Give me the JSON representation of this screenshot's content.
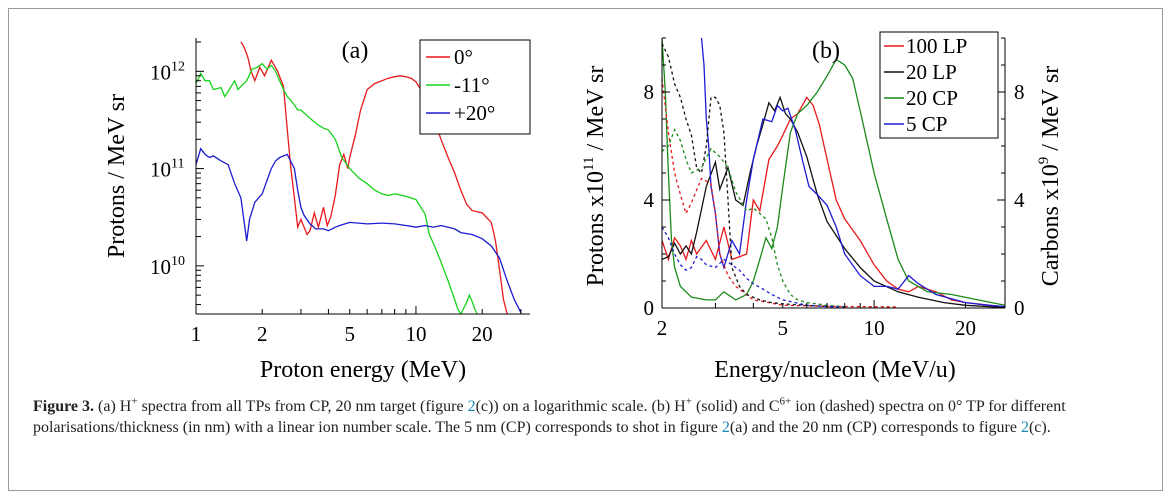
{
  "chart_data": [
    {
      "type": "line",
      "panel_label": "(a)",
      "xscale": "log",
      "yscale": "log",
      "xlabel": "Proton energy (MeV)",
      "ylabel": "Protons / MeV sr",
      "xlim": [
        1,
        33
      ],
      "ylim": [
        3200000000.0,
        2200000000000.0
      ],
      "xticks": [
        1,
        2,
        3,
        4,
        5,
        6,
        7,
        8,
        9,
        10,
        20,
        30
      ],
      "xtick_labels": [
        {
          "v": 1,
          "t": "1"
        },
        {
          "v": 2,
          "t": "2"
        },
        {
          "v": 5,
          "t": "5"
        },
        {
          "v": 10,
          "t": "10"
        },
        {
          "v": 20,
          "t": "20"
        }
      ],
      "yticks_major": [
        {
          "v": 10000000000.0,
          "base": "10",
          "exp": "10"
        },
        {
          "v": 100000000000.0,
          "base": "10",
          "exp": "11"
        },
        {
          "v": 1000000000000.0,
          "base": "10",
          "exp": "12"
        }
      ],
      "legend_placement": "top-right",
      "series": [
        {
          "name": "0°",
          "color": "#e8191b",
          "x": [
            1.6,
            1.65,
            1.72,
            1.78,
            1.85,
            1.95,
            2.05,
            2.2,
            2.35,
            2.5,
            2.6,
            2.7,
            2.8,
            2.9,
            3.0,
            3.1,
            3.2,
            3.3,
            3.45,
            3.6,
            3.8,
            3.95,
            4.1,
            4.3,
            4.5,
            4.7,
            4.9,
            5.0,
            5.3,
            5.6,
            6.0,
            6.5,
            7.0,
            7.5,
            8.0,
            8.5,
            9.0,
            9.5,
            10.0,
            11.0,
            12.0,
            13.0,
            14.0,
            15.0,
            16.0,
            17.0,
            18.0,
            20.0,
            22.0,
            23.0,
            24.0,
            25.0,
            26.0
          ],
          "y": [
            2000000000000.0,
            1800000000000.0,
            1400000000000.0,
            1000000000000.0,
            800000000000.0,
            1100000000000.0,
            900000000000.0,
            1300000000000.0,
            1000000000000.0,
            700000000000.0,
            250000000000.0,
            100000000000.0,
            50000000000.0,
            25000000000.0,
            30000000000.0,
            25000000000.0,
            21000000000.0,
            23000000000.0,
            35000000000.0,
            25000000000.0,
            40000000000.0,
            26000000000.0,
            32000000000.0,
            53000000000.0,
            110000000000.0,
            140000000000.0,
            100000000000.0,
            130000000000.0,
            220000000000.0,
            400000000000.0,
            650000000000.0,
            750000000000.0,
            800000000000.0,
            850000000000.0,
            880000000000.0,
            900000000000.0,
            880000000000.0,
            850000000000.0,
            780000000000.0,
            550000000000.0,
            330000000000.0,
            200000000000.0,
            130000000000.0,
            90000000000.0,
            60000000000.0,
            43000000000.0,
            37000000000.0,
            35000000000.0,
            28000000000.0,
            18000000000.0,
            9000000000.0,
            4500000000.0,
            3200000000.0
          ]
        },
        {
          "name": "-11°",
          "color": "#17d31b",
          "x": [
            1.0,
            1.05,
            1.1,
            1.15,
            1.2,
            1.3,
            1.35,
            1.4,
            1.5,
            1.55,
            1.6,
            1.7,
            1.8,
            1.9,
            2.0,
            2.1,
            2.2,
            2.3,
            2.4,
            2.5,
            2.6,
            2.7,
            2.8,
            2.9,
            3.0,
            3.2,
            3.4,
            3.6,
            3.8,
            4.0,
            4.3,
            4.6,
            5.0,
            5.5,
            6.0,
            6.5,
            7.0,
            7.5,
            8.0,
            9.0,
            10.0,
            11.0,
            11.5,
            12.0,
            13.0,
            14.0,
            15.0,
            15.5,
            16.0,
            17.0,
            17.5,
            18.0,
            18.5,
            19.0
          ],
          "y": [
            750000000000.0,
            950000000000.0,
            800000000000.0,
            800000000000.0,
            650000000000.0,
            680000000000.0,
            550000000000.0,
            620000000000.0,
            800000000000.0,
            650000000000.0,
            700000000000.0,
            800000000000.0,
            1050000000000.0,
            1100000000000.0,
            1200000000000.0,
            1050000000000.0,
            1150000000000.0,
            1000000000000.0,
            800000000000.0,
            650000000000.0,
            550000000000.0,
            500000000000.0,
            450000000000.0,
            400000000000.0,
            400000000000.0,
            350000000000.0,
            310000000000.0,
            280000000000.0,
            260000000000.0,
            250000000000.0,
            200000000000.0,
            130000000000.0,
            100000000000.0,
            80000000000.0,
            70000000000.0,
            60000000000.0,
            55000000000.0,
            53000000000.0,
            55000000000.0,
            52000000000.0,
            48000000000.0,
            34000000000.0,
            21000000000.0,
            17000000000.0,
            11000000000.0,
            7000000000.0,
            4500000000.0,
            3600000000.0,
            3200000000.0,
            4200000000.0,
            5000000000.0,
            4300000000.0,
            3600000000.0,
            3200000000.0
          ]
        },
        {
          "name": "+20°",
          "color": "#1c1cd1",
          "x": [
            1.0,
            1.05,
            1.1,
            1.15,
            1.2,
            1.3,
            1.4,
            1.5,
            1.6,
            1.65,
            1.7,
            1.75,
            1.85,
            2.0,
            2.1,
            2.2,
            2.3,
            2.4,
            2.6,
            2.8,
            2.9,
            3.0,
            3.1,
            3.3,
            3.5,
            3.8,
            4.0,
            4.3,
            4.5,
            5.0,
            6.0,
            7.0,
            8.0,
            9.0,
            10.0,
            11.0,
            12.0,
            13.0,
            14.0,
            15.0,
            16.0,
            18.0,
            20.0,
            22.0,
            24.0,
            26.0,
            28.0,
            30.0
          ],
          "y": [
            110000000000.0,
            160000000000.0,
            140000000000.0,
            130000000000.0,
            135000000000.0,
            120000000000.0,
            110000000000.0,
            70000000000.0,
            50000000000.0,
            30000000000.0,
            18000000000.0,
            30000000000.0,
            45000000000.0,
            55000000000.0,
            75000000000.0,
            100000000000.0,
            120000000000.0,
            130000000000.0,
            140000000000.0,
            100000000000.0,
            60000000000.0,
            40000000000.0,
            33000000000.0,
            27000000000.0,
            24000000000.0,
            24000000000.0,
            23000000000.0,
            25000000000.0,
            26000000000.0,
            28000000000.0,
            27000000000.0,
            27500000000.0,
            27000000000.0,
            26000000000.0,
            25000000000.0,
            26000000000.0,
            25000000000.0,
            26000000000.0,
            25000000000.0,
            24000000000.0,
            22000000000.0,
            21000000000.0,
            19000000000.0,
            16000000000.0,
            12000000000.0,
            7000000000.0,
            4500000000.0,
            3300000000.0
          ]
        }
      ]
    },
    {
      "type": "line",
      "panel_label": "(b)",
      "xscale": "log",
      "yscale": "linear",
      "xlabel": "Energy/nucleon (MeV/u)",
      "ylabel_left": "Protons x10^11 / MeV sr",
      "ylabel_right": "Carbons x10^9 / MeV sr",
      "xlim": [
        2,
        27
      ],
      "ylim_left": [
        0,
        10
      ],
      "ylim_right": [
        0,
        10
      ],
      "xticks": [
        2,
        3,
        4,
        5,
        6,
        7,
        8,
        9,
        10,
        20
      ],
      "xtick_labels": [
        {
          "v": 2,
          "t": "2"
        },
        {
          "v": 5,
          "t": "5"
        },
        {
          "v": 10,
          "t": "10"
        },
        {
          "v": 20,
          "t": "20"
        }
      ],
      "yticks_left": [
        0,
        4,
        8
      ],
      "yticks_right": [
        0,
        4,
        8
      ],
      "legend_placement": "top-right",
      "series": [
        {
          "name": "100 LP",
          "kind": "protons",
          "color": "#e8191b",
          "x": [
            2.0,
            2.1,
            2.2,
            2.3,
            2.4,
            2.5,
            2.6,
            2.8,
            3.0,
            3.2,
            3.4,
            3.6,
            3.8,
            4.0,
            4.2,
            4.5,
            4.8,
            5.0,
            5.3,
            5.6,
            6.0,
            6.3,
            6.6,
            7.0,
            7.5,
            8.0,
            9.0,
            10.0,
            11.0,
            12.0,
            13.0,
            14.0,
            16.0,
            18.0,
            20.0,
            24.0,
            27.0
          ],
          "y": [
            2.5,
            1.8,
            2.6,
            2.3,
            1.8,
            2.5,
            2.0,
            2.5,
            1.8,
            3.0,
            1.8,
            1.9,
            2.0,
            4.0,
            3.6,
            5.5,
            6.0,
            6.4,
            7.0,
            7.2,
            7.8,
            7.5,
            6.8,
            5.5,
            4.0,
            3.3,
            2.5,
            1.6,
            1.0,
            0.7,
            0.6,
            0.8,
            0.6,
            0.3,
            0.2,
            0.1,
            0.05
          ]
        },
        {
          "name": "20 LP",
          "kind": "protons",
          "color": "#111111",
          "x": [
            2.0,
            2.1,
            2.2,
            2.3,
            2.4,
            2.5,
            2.6,
            2.8,
            3.0,
            3.1,
            3.3,
            3.5,
            3.7,
            3.9,
            4.1,
            4.3,
            4.5,
            4.7,
            4.9,
            5.1,
            5.3,
            5.6,
            6.0,
            6.5,
            7.0,
            8.0,
            9.0,
            10.0,
            12.0,
            14.0,
            17.0,
            20.0,
            24.0,
            27.0
          ],
          "y": [
            1.8,
            1.9,
            2.4,
            2.0,
            2.3,
            2.0,
            2.8,
            4.5,
            5.4,
            4.4,
            5.2,
            4.0,
            3.8,
            5.0,
            6.0,
            6.8,
            7.6,
            7.3,
            7.8,
            7.2,
            7.0,
            6.5,
            5.6,
            4.2,
            3.2,
            2.2,
            1.5,
            1.0,
            0.6,
            0.4,
            0.2,
            0.1,
            0.05,
            0.02
          ]
        },
        {
          "name": "20 CP",
          "kind": "protons",
          "color": "#1a8a1a",
          "x": [
            2.0,
            2.05,
            2.1,
            2.15,
            2.2,
            2.3,
            2.5,
            2.8,
            3.0,
            3.2,
            3.5,
            3.8,
            4.0,
            4.2,
            4.4,
            4.6,
            4.8,
            5.0,
            5.3,
            5.6,
            6.0,
            6.5,
            7.0,
            7.5,
            8.0,
            8.5,
            9.0,
            10.0,
            11.0,
            12.0,
            13.0,
            15.0,
            18.0,
            22.0,
            27.0
          ],
          "y": [
            10.0,
            8.0,
            5.0,
            2.5,
            1.5,
            0.8,
            0.4,
            0.3,
            0.3,
            0.6,
            0.3,
            0.5,
            1.0,
            1.8,
            2.6,
            2.2,
            3.0,
            4.5,
            6.5,
            7.2,
            7.5,
            8.0,
            8.6,
            9.2,
            9.0,
            8.5,
            7.3,
            5.0,
            3.3,
            1.8,
            1.0,
            0.6,
            0.5,
            0.3,
            0.1
          ]
        },
        {
          "name": "5 CP",
          "kind": "protons",
          "color": "#1c1cd1",
          "x": [
            2.7,
            2.75,
            2.8,
            2.85,
            2.9,
            3.0,
            3.1,
            3.2,
            3.4,
            3.6,
            3.8,
            4.0,
            4.3,
            4.6,
            4.8,
            5.0,
            5.2,
            5.5,
            5.8,
            6.1,
            6.5,
            7.0,
            7.5,
            8.0,
            9.0,
            10.0,
            11.0,
            12.0,
            13.0,
            14.0,
            16.0,
            20.0,
            24.0,
            27.0
          ],
          "y": [
            10.0,
            9.0,
            7.0,
            6.0,
            4.5,
            3.5,
            2.0,
            1.5,
            2.5,
            2.0,
            4.0,
            5.5,
            7.0,
            6.9,
            7.5,
            7.3,
            7.4,
            6.6,
            5.5,
            4.5,
            4.2,
            3.8,
            3.0,
            2.0,
            1.2,
            0.8,
            0.8,
            0.7,
            1.2,
            0.9,
            0.5,
            0.2,
            0.1,
            0.05
          ]
        },
        {
          "name": "100 LP",
          "kind": "carbons",
          "color": "#e8191b",
          "x": [
            2.0,
            2.1,
            2.2,
            2.3,
            2.4,
            2.5,
            2.7,
            2.9,
            3.0,
            3.1,
            3.3,
            3.5,
            3.8,
            4.0,
            4.5,
            5.0,
            6.0,
            7.0,
            9.0,
            12.0
          ],
          "y": [
            8.5,
            6.5,
            5.0,
            4.2,
            3.5,
            3.9,
            4.8,
            4.6,
            3.5,
            2.0,
            1.2,
            0.8,
            0.5,
            0.3,
            0.2,
            0.1,
            0.08,
            0.06,
            0.05,
            0.04
          ]
        },
        {
          "name": "20 LP",
          "kind": "carbons",
          "color": "#111111",
          "x": [
            2.0,
            2.1,
            2.2,
            2.3,
            2.4,
            2.5,
            2.6,
            2.7,
            2.8,
            2.9,
            3.0,
            3.1,
            3.2,
            3.3,
            3.4,
            3.6,
            3.8,
            4.2,
            4.6,
            5.0,
            6.0,
            7.0
          ],
          "y": [
            9.8,
            9.3,
            8.3,
            7.8,
            7.0,
            6.4,
            5.2,
            5.0,
            6.0,
            7.8,
            7.8,
            7.5,
            6.5,
            4.0,
            1.5,
            0.8,
            0.5,
            0.3,
            0.2,
            0.15,
            0.1,
            0.06
          ]
        },
        {
          "name": "20 CP",
          "kind": "carbons",
          "color": "#1a8a1a",
          "x": [
            2.0,
            2.1,
            2.2,
            2.3,
            2.4,
            2.5,
            2.7,
            2.9,
            3.1,
            3.3,
            3.5,
            3.8,
            4.0,
            4.2,
            4.4,
            4.6,
            4.8,
            5.0,
            5.3,
            5.6,
            6.0,
            7.0,
            8.0
          ],
          "y": [
            5.8,
            6.0,
            6.6,
            6.2,
            5.5,
            5.0,
            5.2,
            5.9,
            5.6,
            5.2,
            4.3,
            3.6,
            3.7,
            3.5,
            3.3,
            2.6,
            1.6,
            1.0,
            0.5,
            0.3,
            0.2,
            0.1,
            0.05
          ]
        },
        {
          "name": "5 CP",
          "kind": "carbons",
          "color": "#1c1cd1",
          "x": [
            2.0,
            2.1,
            2.2,
            2.3,
            2.4,
            2.5,
            2.6,
            2.7,
            2.8,
            3.0,
            3.2,
            3.4,
            3.6,
            3.8,
            4.0,
            4.3,
            4.6,
            5.0,
            5.5,
            6.0,
            7.0,
            8.0
          ],
          "y": [
            3.0,
            2.6,
            2.0,
            1.6,
            1.4,
            1.5,
            1.9,
            1.8,
            1.6,
            1.5,
            1.8,
            1.6,
            1.4,
            1.1,
            0.9,
            0.7,
            0.5,
            0.3,
            0.2,
            0.1,
            0.05,
            0.03
          ]
        }
      ]
    }
  ],
  "caption": {
    "label": "Figure 3.",
    "p1": " (a) H",
    "p1_sup": "+",
    "p2": " spectra from all TPs from CP, 20 nm target (figure ",
    "ref1": "2",
    "p3": "(c)) on a logarithmic scale. (b) H",
    "p3_sup": "+",
    "p4": " (solid) and C",
    "p4_sup": "6+",
    "p5": " ion (dashed) spectra on 0° TP for different polarisations/thickness (in nm) with a linear ion number scale. The 5 nm (CP) corresponds to shot in figure ",
    "ref2": "2",
    "p6": "(a) and the 20 nm (CP) corresponds to figure ",
    "ref3": "2",
    "p7": "(c)."
  }
}
